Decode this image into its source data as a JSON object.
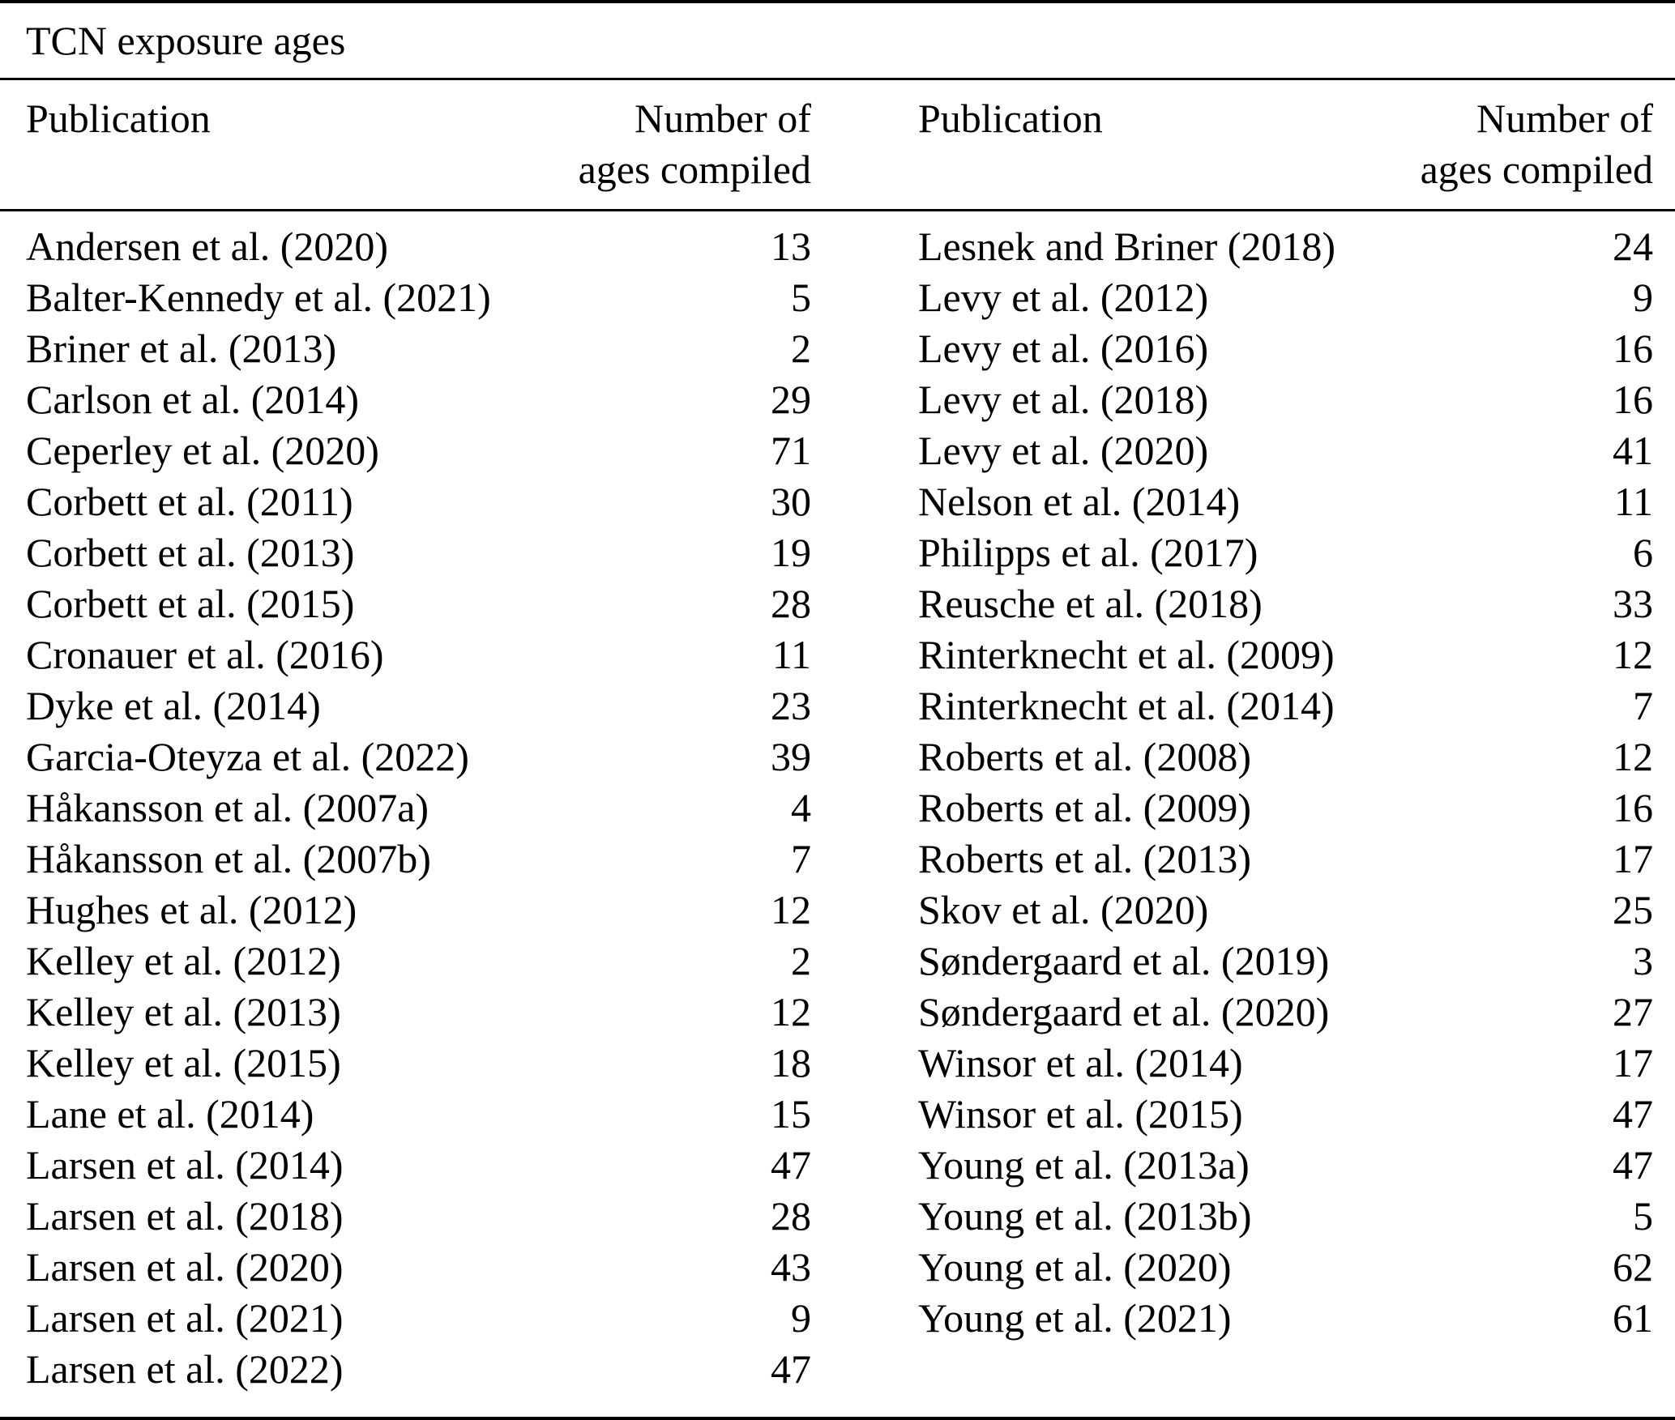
{
  "table": {
    "title": "TCN exposure ages",
    "column_headers": {
      "publication": "Publication",
      "count_line1": "Number of",
      "count_line2": "ages compiled"
    },
    "left_rows": [
      [
        "Andersen et al. (2020)",
        13
      ],
      [
        "Balter-Kennedy et al. (2021)",
        5
      ],
      [
        "Briner et al. (2013)",
        2
      ],
      [
        "Carlson et al. (2014)",
        29
      ],
      [
        "Ceperley et al. (2020)",
        71
      ],
      [
        "Corbett et al. (2011)",
        30
      ],
      [
        "Corbett et al. (2013)",
        19
      ],
      [
        "Corbett et al. (2015)",
        28
      ],
      [
        "Cronauer et al. (2016)",
        11
      ],
      [
        "Dyke et al. (2014)",
        23
      ],
      [
        "Garcia-Oteyza et al. (2022)",
        39
      ],
      [
        "Håkansson et al. (2007a)",
        4
      ],
      [
        "Håkansson et al. (2007b)",
        7
      ],
      [
        "Hughes et al. (2012)",
        12
      ],
      [
        "Kelley et al. (2012)",
        2
      ],
      [
        "Kelley et al. (2013)",
        12
      ],
      [
        "Kelley et al. (2015)",
        18
      ],
      [
        "Lane et al. (2014)",
        15
      ],
      [
        "Larsen et al. (2014)",
        47
      ],
      [
        "Larsen et al. (2018)",
        28
      ],
      [
        "Larsen et al. (2020)",
        43
      ],
      [
        "Larsen et al. (2021)",
        9
      ],
      [
        "Larsen et al. (2022)",
        47
      ]
    ],
    "right_rows": [
      [
        "Lesnek and Briner (2018)",
        24
      ],
      [
        "Levy et al. (2012)",
        9
      ],
      [
        "Levy et al. (2016)",
        16
      ],
      [
        "Levy et al. (2018)",
        16
      ],
      [
        "Levy et al. (2020)",
        41
      ],
      [
        "Nelson et al. (2014)",
        11
      ],
      [
        "Philipps et al. (2017)",
        6
      ],
      [
        "Reusche et al. (2018)",
        33
      ],
      [
        "Rinterknecht et al. (2009)",
        12
      ],
      [
        "Rinterknecht et al. (2014)",
        7
      ],
      [
        "Roberts et al. (2008)",
        12
      ],
      [
        "Roberts et al. (2009)",
        16
      ],
      [
        "Roberts et al. (2013)",
        17
      ],
      [
        "Skov et al. (2020)",
        25
      ],
      [
        "Søndergaard et al. (2019)",
        3
      ],
      [
        "Søndergaard et al. (2020)",
        27
      ],
      [
        "Winsor et al. (2014)",
        17
      ],
      [
        "Winsor et al. (2015)",
        47
      ],
      [
        "Young et al. (2013a)",
        47
      ],
      [
        "Young et al. (2013b)",
        5
      ],
      [
        "Young et al. (2020)",
        62
      ],
      [
        "Young et al. (2021)",
        61
      ]
    ]
  }
}
